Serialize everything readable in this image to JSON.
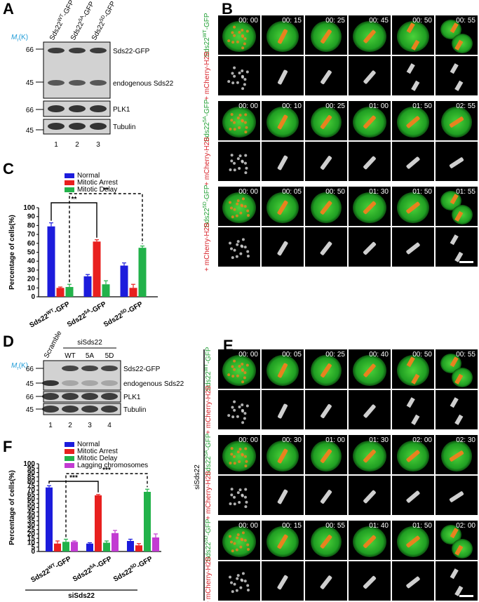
{
  "panel_labels": [
    "A",
    "B",
    "C",
    "D",
    "E",
    "F"
  ],
  "blot_a": {
    "mr": {
      "base": "M",
      "sub": "r",
      "tail": "(K)"
    },
    "lanes": [
      {
        "base": "Sds22",
        "sup": "WT",
        "tail": "-GFP"
      },
      {
        "base": "Sds22",
        "sup": "5A",
        "tail": "-GFP"
      },
      {
        "base": "Sds22",
        "sup": "5D",
        "tail": "-GFP"
      }
    ],
    "markers": [
      66,
      45,
      66,
      45
    ],
    "bands": [
      "Sds22-GFP",
      "endogenous Sds22",
      "PLK1",
      "Tubulin"
    ],
    "lane_numbers": [
      1,
      2,
      3
    ]
  },
  "imaging_b": {
    "rows": [
      {
        "label": {
          "base": "Sds22",
          "sup": "WT",
          "tail": "-GFP"
        },
        "marker": "+ mCherry-H2B",
        "times": [
          "00: 00",
          "00: 15",
          "00: 25",
          "00: 45",
          "00: 50",
          "00: 55"
        ]
      },
      {
        "label": {
          "base": "Sds22",
          "sup": "5A",
          "tail": "-GFP"
        },
        "marker": "+ mCherry-H2B",
        "times": [
          "00: 00",
          "00: 10",
          "00: 25",
          "01: 00",
          "01: 50",
          "02: 55"
        ]
      },
      {
        "label": {
          "base": "Sds22",
          "sup": "5D",
          "tail": "-GFP"
        },
        "marker": "+ mCherry-H2B",
        "times": [
          "00: 00",
          "00: 05",
          "00: 50",
          "01: 30",
          "01: 50",
          "01: 55"
        ]
      }
    ]
  },
  "chart_data": [
    {
      "type": "bar",
      "ylabel": "Percentage of cells(%)",
      "categories": [
        {
          "base": "Sds22",
          "sup": "WT",
          "tail": "-GFP"
        },
        {
          "base": "Sds22",
          "sup": "5A",
          "tail": "-GFP"
        },
        {
          "base": "Sds22",
          "sup": "5D",
          "tail": "-GFP"
        }
      ],
      "series": [
        {
          "name": "Normal",
          "color": "#1c1cdc",
          "values": [
            79,
            23,
            35
          ],
          "errors": [
            4,
            2,
            3
          ]
        },
        {
          "name": "Mitotic Arrest",
          "color": "#e8201f",
          "values": [
            10,
            62,
            10
          ],
          "errors": [
            1,
            2,
            4
          ]
        },
        {
          "name": "Mitotic Delay",
          "color": "#22b24a",
          "values": [
            11,
            14,
            55
          ],
          "errors": [
            3,
            4,
            2
          ]
        }
      ],
      "ylim": [
        0,
        100
      ],
      "yticks": [
        0,
        10,
        20,
        30,
        40,
        50,
        60,
        70,
        80,
        90,
        100
      ],
      "annotations": [
        "**",
        "**"
      ]
    },
    {
      "type": "bar",
      "ylabel": "Percentage of cells(%)",
      "categories": [
        {
          "base": "Sds22",
          "sup": "WT",
          "tail": "-GFP"
        },
        {
          "base": "Sds22",
          "sup": "5A",
          "tail": "-GFP"
        },
        {
          "base": "Sds22",
          "sup": "5D",
          "tail": "-GFP"
        }
      ],
      "series": [
        {
          "name": "Normal",
          "color": "#1c1cdc",
          "values": [
            73,
            9,
            12
          ],
          "errors": [
            2,
            1,
            2
          ]
        },
        {
          "name": "Mitotic Arrest",
          "color": "#e8201f",
          "values": [
            9,
            64,
            7
          ],
          "errors": [
            3,
            1,
            2
          ]
        },
        {
          "name": "Mitotic Delay",
          "color": "#22b24a",
          "values": [
            11,
            10,
            68
          ],
          "errors": [
            3,
            2,
            3
          ]
        },
        {
          "name": "Lagging chromosomes",
          "color": "#c23bd2",
          "values": [
            11,
            21,
            16
          ],
          "errors": [
            1,
            3,
            4
          ]
        }
      ],
      "ylim": [
        0,
        100
      ],
      "yticks": [
        0,
        5,
        10,
        15,
        20,
        25,
        30,
        35,
        40,
        45,
        50,
        55,
        60,
        65,
        70,
        75,
        80,
        85,
        90,
        95,
        100
      ],
      "annotations": [
        "***",
        "***"
      ],
      "group_label": "siSds22"
    }
  ],
  "blot_d": {
    "mr": {
      "base": "M",
      "sub": "r",
      "tail": "(K)"
    },
    "scramble": "Scramble",
    "group": "siSds22",
    "lanes": [
      "WT",
      "5A",
      "5D"
    ],
    "markers": [
      66,
      45,
      66,
      45
    ],
    "bands": [
      "Sds22-GFP",
      "endogenous Sds22",
      "PLK1",
      "Tubulin"
    ],
    "lane_numbers": [
      1,
      2,
      3,
      4
    ]
  },
  "imaging_e": {
    "title": "siSds22",
    "rows": [
      {
        "label": {
          "base": "Sds22",
          "sup": "WT",
          "tail": "-GFP"
        },
        "marker": "+ mCherry-H2B",
        "times": [
          "00: 00",
          "00: 05",
          "00: 25",
          "00: 40",
          "00: 50",
          "00: 55"
        ]
      },
      {
        "label": {
          "base": "Sds22",
          "sup": "5A",
          "tail": "-GFP"
        },
        "marker": "+ mCherry-H2B",
        "times": [
          "00: 00",
          "00: 30",
          "01: 00",
          "01: 30",
          "02: 00",
          "02: 30"
        ]
      },
      {
        "label": {
          "base": "Sds22",
          "sup": "5D",
          "tail": "-GFP"
        },
        "marker": "+ mCherry-H2B",
        "times": [
          "00: 00",
          "00: 15",
          "00: 55",
          "01: 40",
          "01: 50",
          "02: 00"
        ]
      }
    ]
  }
}
